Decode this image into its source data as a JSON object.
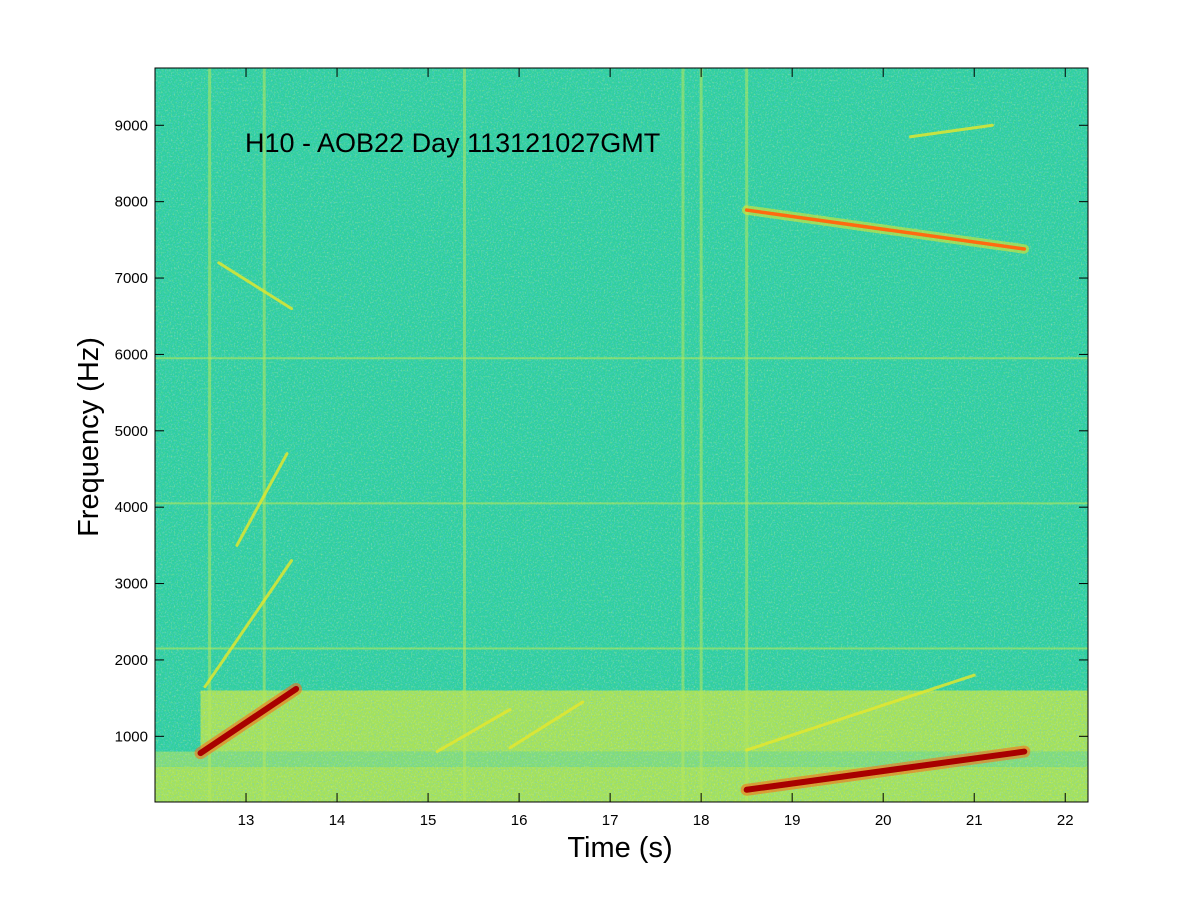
{
  "chart_data": {
    "type": "heatmap",
    "title": "H10 - AOB22 Day 113121027GMT",
    "xlabel": "Time (s)",
    "ylabel": "Frequency (Hz)",
    "xlim": [
      12.0,
      22.25
    ],
    "ylim": [
      140,
      9750
    ],
    "xticks": [
      13,
      14,
      15,
      16,
      17,
      18,
      19,
      20,
      21,
      22
    ],
    "yticks": [
      1000,
      2000,
      3000,
      4000,
      5000,
      6000,
      7000,
      8000,
      9000
    ],
    "grid": false,
    "colormap": "jet",
    "colors": {
      "background": "#2fcf9f",
      "low_freq_band": "#c8e83a",
      "strong": "#a80000",
      "medium": "#ff6a10",
      "weak": "#e8e82a"
    },
    "bands": [
      {
        "x": [
          12.5,
          22.25
        ],
        "y": [
          800,
          1600
        ],
        "level": "yellow"
      },
      {
        "x": [
          12.0,
          22.25
        ],
        "y": [
          140,
          600
        ],
        "level": "yellow"
      },
      {
        "x": [
          12.0,
          22.25
        ],
        "y": [
          600,
          800
        ],
        "level": "light"
      }
    ],
    "vertical_streaks": [
      12.6,
      13.2,
      15.4,
      17.8,
      18.0,
      18.5
    ],
    "horizontal_lines": [
      5950,
      4050,
      2150
    ],
    "tracks": [
      {
        "name": "upsweep 1",
        "x": [
          12.5,
          13.55
        ],
        "y": [
          780,
          1620
        ],
        "strength": "strong"
      },
      {
        "name": "upsweep 1 harmonic",
        "x": [
          12.55,
          13.5
        ],
        "y": [
          1650,
          3300
        ],
        "strength": "weak"
      },
      {
        "name": "upsweep 1 harmonic 2",
        "x": [
          12.9,
          13.45
        ],
        "y": [
          3500,
          4700
        ],
        "strength": "weak"
      },
      {
        "name": "downsweep 1",
        "x": [
          18.5,
          21.55
        ],
        "y": [
          7890,
          7380
        ],
        "strength": "medium"
      },
      {
        "name": "upsweep 2",
        "x": [
          18.5,
          21.55
        ],
        "y": [
          300,
          800
        ],
        "strength": "strong"
      },
      {
        "name": "upsweep 2 harmonic",
        "x": [
          18.5,
          21.0
        ],
        "y": [
          820,
          1800
        ],
        "strength": "weak"
      },
      {
        "name": "faint sweep a",
        "x": [
          15.1,
          15.9
        ],
        "y": [
          800,
          1350
        ],
        "strength": "weak"
      },
      {
        "name": "faint sweep b",
        "x": [
          15.9,
          16.7
        ],
        "y": [
          850,
          1450
        ],
        "strength": "weak"
      },
      {
        "name": "faint sweep c",
        "x": [
          12.7,
          13.5
        ],
        "y": [
          7200,
          6600
        ],
        "strength": "weak"
      },
      {
        "name": "faint sweep d",
        "x": [
          20.3,
          21.2
        ],
        "y": [
          8850,
          9000
        ],
        "strength": "weak"
      }
    ]
  }
}
